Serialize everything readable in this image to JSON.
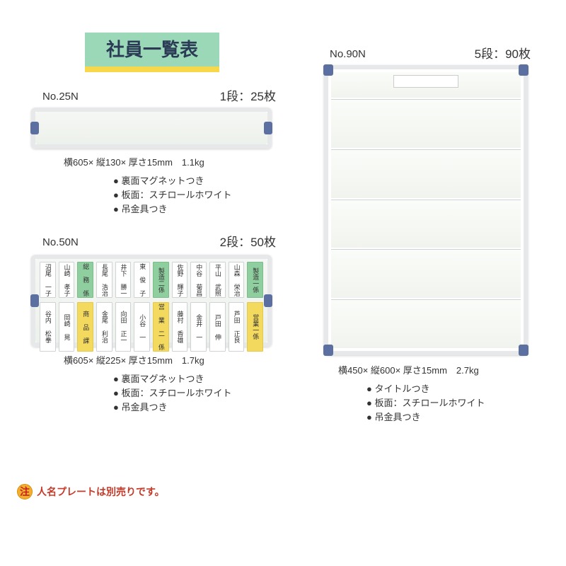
{
  "colors": {
    "title_bg": "#9ad8b8",
    "title_underline": "#f7d84a",
    "title_text": "#2b3a55",
    "corner": "#5b6fa0",
    "frame": "#e6e8ea",
    "inner_top": "#fafcf9",
    "inner_bot": "#f1f4ee",
    "plate_border": "#d0d3d6",
    "plate_green": "#8fce9e",
    "plate_yellow": "#f3d95e",
    "note_badge_bg": "#f2b02e",
    "note_text": "#c63a2a"
  },
  "title": "社員一覧表",
  "products": {
    "p25": {
      "model": "No.25N",
      "capacity": "1段：25枚",
      "dims": "横605× 縦130× 厚さ15mm　1.1kg",
      "bullets": [
        "裏面マグネットつき",
        "板面：スチロールホワイト",
        "吊金具つき"
      ]
    },
    "p50": {
      "model": "No.50N",
      "capacity": "2段：50枚",
      "dims": "横605× 縦225× 厚さ15mm　1.7kg",
      "bullets": [
        "裏面マグネットつき",
        "板面：スチロールホワイト",
        "吊金具つき"
      ],
      "rows": [
        [
          {
            "t": "沼尾 一子",
            "c": ""
          },
          {
            "t": "山崎 孝子",
            "c": ""
          },
          {
            "t": "総 務 係",
            "c": "green"
          },
          {
            "t": "長尾 浩治",
            "c": ""
          },
          {
            "t": "井下 勝一",
            "c": ""
          },
          {
            "t": "東 俊 子",
            "c": ""
          },
          {
            "t": "製造二係",
            "c": "green"
          },
          {
            "t": "佐野 輝子",
            "c": ""
          },
          {
            "t": "中谷 菊昌",
            "c": ""
          },
          {
            "t": "平山 武照",
            "c": ""
          },
          {
            "t": "山森 栄治",
            "c": ""
          },
          {
            "t": "製造一係",
            "c": "green"
          }
        ],
        [
          {
            "t": "谷内 松拳",
            "c": ""
          },
          {
            "t": "岡崎 晃",
            "c": ""
          },
          {
            "t": "商 品 課",
            "c": "yellow"
          },
          {
            "t": "金尾 利治",
            "c": ""
          },
          {
            "t": "向田 正一",
            "c": ""
          },
          {
            "t": "小谷 一",
            "c": ""
          },
          {
            "t": "営 業 二 係",
            "c": "yellow"
          },
          {
            "t": "藤村 香雄",
            "c": ""
          },
          {
            "t": "金井 一",
            "c": ""
          },
          {
            "t": "戸田 伸",
            "c": ""
          },
          {
            "t": "芦田 正良",
            "c": ""
          },
          {
            "t": "営業一係",
            "c": "yellow"
          }
        ]
      ]
    },
    "p90": {
      "model": "No.90N",
      "capacity": "5段：90枚",
      "dims": "横450× 縦600× 厚さ15mm　2.7kg",
      "bullets": [
        "タイトルつき",
        "板面：スチロールホワイト",
        "吊金具つき"
      ]
    }
  },
  "note": {
    "badge": "注",
    "text": "人名プレートは別売りです。"
  }
}
